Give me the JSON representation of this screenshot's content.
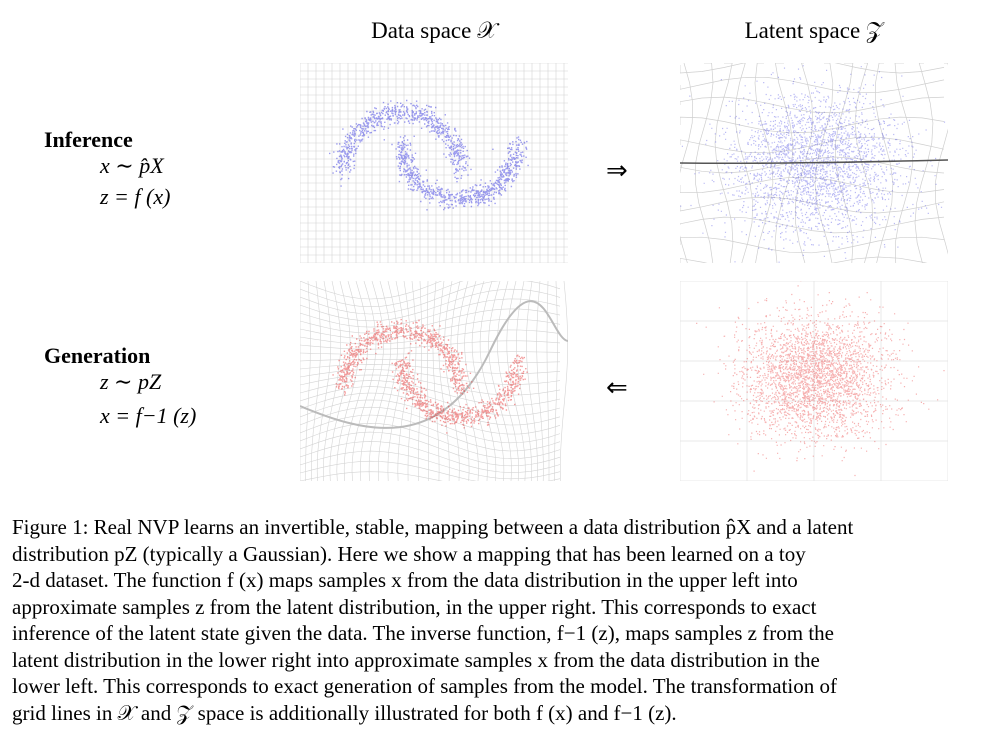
{
  "headers": {
    "data_space": "Data space 𝒳",
    "latent_space": "Latent space 𝒵"
  },
  "inference": {
    "title": "Inference",
    "line1": "x ∼ p̂X",
    "line2": "z = f (x)"
  },
  "generation": {
    "title": "Generation",
    "line1": "z ∼ pZ",
    "line2": "x = f−1 (z)"
  },
  "arrows": {
    "forward": "⇒",
    "backward": "⇐"
  },
  "panels": {
    "data_top": {
      "points_color": "#3a3ae0",
      "shape": "two moons"
    },
    "latent_top": {
      "points_color": "#3a3ae0",
      "shape": "gaussian"
    },
    "data_bottom": {
      "points_color": "#e83a3a",
      "shape": "two moons"
    },
    "latent_bottom": {
      "points_color": "#e83a3a",
      "shape": "gaussian"
    }
  },
  "caption": {
    "lines": [
      "Figure 1: Real NVP learns an invertible, stable, mapping between a data distribution p̂X and a latent",
      "distribution pZ (typically a Gaussian).  Here we show a mapping that has been learned on a toy",
      "2-d dataset.  The function f (x) maps samples x from the data distribution in the upper left into",
      "approximate samples z from the latent distribution, in the upper right.  This corresponds to exact",
      "inference of the latent state given the data. The inverse function, f−1 (z), maps samples z from the",
      "latent distribution in the lower right into approximate samples x from the data distribution in the",
      "lower left. This corresponds to exact generation of samples from the model. The transformation of",
      "grid lines in 𝒳 and 𝒵 space is additionally illustrated for both f (x) and f−1 (z)."
    ]
  }
}
